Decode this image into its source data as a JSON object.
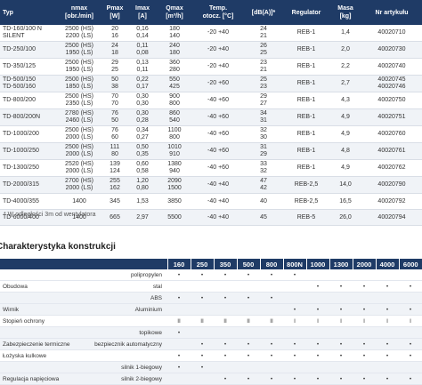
{
  "spec_table": {
    "headers": [
      {
        "top": "Typ",
        "bottom": ""
      },
      {
        "top": "nmax",
        "bottom": "[obr./min]"
      },
      {
        "top": "Pmax",
        "bottom": "[W]"
      },
      {
        "top": "Imax",
        "bottom": "[A]"
      },
      {
        "top": "Qmax",
        "bottom": "[m³/h]"
      },
      {
        "top": "Temp.",
        "bottom": "otocz. [°C]"
      },
      {
        "top": "[dB(A)]*",
        "bottom": ""
      },
      {
        "top": "Regulator",
        "bottom": ""
      },
      {
        "top": "Masa",
        "bottom": "[kg]"
      },
      {
        "top": "Nr artykułu",
        "bottom": ""
      }
    ],
    "rows": [
      {
        "typ": [
          "TD-160/100 N",
          "SILENT"
        ],
        "nmax": [
          "2500 (HS)",
          "2200 (LS)"
        ],
        "pmax": [
          "20",
          "16"
        ],
        "imax": [
          "0,16",
          "0,14"
        ],
        "qmax": [
          "180",
          "140"
        ],
        "temp": [
          "-20 +40"
        ],
        "db": [
          "24",
          "21"
        ],
        "reg": [
          "REB-1"
        ],
        "masa": [
          "1,4"
        ],
        "nr": [
          "40020710"
        ]
      },
      {
        "typ": [
          "TD-250/100"
        ],
        "nmax": [
          "2500 (HS)",
          "1950 (LS)"
        ],
        "pmax": [
          "24",
          "18"
        ],
        "imax": [
          "0,11",
          "0,08"
        ],
        "qmax": [
          "240",
          "180"
        ],
        "temp": [
          "-20 +40"
        ],
        "db": [
          "26",
          "25"
        ],
        "reg": [
          "REB-1"
        ],
        "masa": [
          "2,0"
        ],
        "nr": [
          "40020730"
        ]
      },
      {
        "typ": [
          "TD-350/125"
        ],
        "nmax": [
          "2500 (HS)",
          "1950 (LS)"
        ],
        "pmax": [
          "29",
          "25"
        ],
        "imax": [
          "0,13",
          "0,11"
        ],
        "qmax": [
          "360",
          "280"
        ],
        "temp": [
          "-20 +40"
        ],
        "db": [
          "23",
          "21"
        ],
        "reg": [
          "REB-1"
        ],
        "masa": [
          "2,2"
        ],
        "nr": [
          "40020740"
        ]
      },
      {
        "typ": [
          "TD-500/150",
          "TD-500/160"
        ],
        "nmax": [
          "2500 (HS)",
          "1850 (LS)"
        ],
        "pmax": [
          "50",
          "38"
        ],
        "imax": [
          "0,22",
          "0,17"
        ],
        "qmax": [
          "550",
          "425"
        ],
        "temp": [
          "-20 +60"
        ],
        "db": [
          "25",
          "23"
        ],
        "reg": [
          "REB-1"
        ],
        "masa": [
          "2,7"
        ],
        "nr": [
          "40020745",
          "40020746"
        ]
      },
      {
        "typ": [
          "TD-800/200"
        ],
        "nmax": [
          "2500 (HS)",
          "2350 (LS)"
        ],
        "pmax": [
          "70",
          "70"
        ],
        "imax": [
          "0,30",
          "0,30"
        ],
        "qmax": [
          "900",
          "800"
        ],
        "temp": [
          "-40 +60"
        ],
        "db": [
          "29",
          "27"
        ],
        "reg": [
          "REB-1"
        ],
        "masa": [
          "4,3"
        ],
        "nr": [
          "40020750"
        ]
      },
      {
        "typ": [
          "TD-800/200N"
        ],
        "nmax": [
          "2780 (HS)",
          "2460 (LS)"
        ],
        "pmax": [
          "76",
          "50"
        ],
        "imax": [
          "0,30",
          "0,28"
        ],
        "qmax": [
          "860",
          "540"
        ],
        "temp": [
          "-40 +60"
        ],
        "db": [
          "34",
          "31"
        ],
        "reg": [
          "REB-1"
        ],
        "masa": [
          "4,9"
        ],
        "nr": [
          "40020751"
        ]
      },
      {
        "typ": [
          "TD-1000/200"
        ],
        "nmax": [
          "2500 (HS)",
          "2000 (LS)"
        ],
        "pmax": [
          "76",
          "60"
        ],
        "imax": [
          "0,34",
          "0,27"
        ],
        "qmax": [
          "1100",
          "800"
        ],
        "temp": [
          "-40 +60"
        ],
        "db": [
          "32",
          "30"
        ],
        "reg": [
          "REB-1"
        ],
        "masa": [
          "4,9"
        ],
        "nr": [
          "40020760"
        ]
      },
      {
        "typ": [
          "TD-1000/250"
        ],
        "nmax": [
          "2500 (HS)",
          "2000 (LS)"
        ],
        "pmax": [
          "111",
          "80"
        ],
        "imax": [
          "0,50",
          "0,35"
        ],
        "qmax": [
          "1010",
          "910"
        ],
        "temp": [
          "-40 +60"
        ],
        "db": [
          "31",
          "29"
        ],
        "reg": [
          "REB-1"
        ],
        "masa": [
          "4,8"
        ],
        "nr": [
          "40020761"
        ]
      },
      {
        "typ": [
          "TD-1300/250"
        ],
        "nmax": [
          "2520 (HS)",
          "2000 (LS)"
        ],
        "pmax": [
          "139",
          "124"
        ],
        "imax": [
          "0,60",
          "0,58"
        ],
        "qmax": [
          "1380",
          "940"
        ],
        "temp": [
          "-40 +60"
        ],
        "db": [
          "33",
          "32"
        ],
        "reg": [
          "REB-1"
        ],
        "masa": [
          "4,9"
        ],
        "nr": [
          "40020762"
        ]
      },
      {
        "typ": [
          "TD-2000/315"
        ],
        "nmax": [
          "2700 (HS)",
          "2000 (LS)"
        ],
        "pmax": [
          "255",
          "162"
        ],
        "imax": [
          "1,20",
          "0,80"
        ],
        "qmax": [
          "2090",
          "1500"
        ],
        "temp": [
          "-40 +40"
        ],
        "db": [
          "47",
          "42"
        ],
        "reg": [
          "REB-2,5"
        ],
        "masa": [
          "14,0"
        ],
        "nr": [
          "40020790"
        ]
      },
      {
        "typ": [
          "TD-4000/355"
        ],
        "nmax": [
          "1400"
        ],
        "pmax": [
          "345"
        ],
        "imax": [
          "1,53"
        ],
        "qmax": [
          "3850"
        ],
        "temp": [
          "-40 +40"
        ],
        "db": [
          "40"
        ],
        "reg": [
          "REB-2,5"
        ],
        "masa": [
          "16,5"
        ],
        "nr": [
          "40020792"
        ]
      },
      {
        "typ": [
          "TD-6000/400"
        ],
        "nmax": [
          "1400"
        ],
        "pmax": [
          "665"
        ],
        "imax": [
          "2,97"
        ],
        "qmax": [
          "5500"
        ],
        "temp": [
          "-40 +40"
        ],
        "db": [
          "45"
        ],
        "reg": [
          "REB-5"
        ],
        "masa": [
          "26,0"
        ],
        "nr": [
          "40020794"
        ]
      }
    ]
  },
  "footnote": "* W odległości 3m od wentylatora",
  "section_title": "Charakterystyka konstrukcji",
  "construction_table": {
    "sizes": [
      "160",
      "250",
      "350",
      "500",
      "800",
      "800N",
      "1000",
      "1300",
      "2000",
      "4000",
      "6000"
    ],
    "rows": [
      {
        "group": 1,
        "label": "",
        "sub": "polipropylen",
        "marks": [
          "•",
          "•",
          "•",
          "•",
          "•",
          "•",
          "",
          "",
          "",
          "",
          ""
        ]
      },
      {
        "group": 1,
        "label": "Obudowa",
        "sub": "stal",
        "marks": [
          "",
          "",
          "",
          "",
          "",
          "",
          "•",
          "•",
          "•",
          "•",
          "•"
        ]
      },
      {
        "group": 2,
        "label": "",
        "sub": "ABS",
        "marks": [
          "•",
          "•",
          "•",
          "•",
          "•",
          "",
          "",
          "",
          "",
          "",
          ""
        ]
      },
      {
        "group": 2,
        "label": "Wirnik",
        "sub": "Aluminium",
        "marks": [
          "",
          "",
          "",
          "",
          "",
          "•",
          "•",
          "•",
          "•",
          "•",
          "•"
        ]
      },
      {
        "group": 3,
        "label": "Stopień ochrony",
        "sub": "",
        "marks": [
          "II",
          "II",
          "II",
          "II",
          "II",
          "I",
          "I",
          "I",
          "I",
          "I",
          "I"
        ]
      },
      {
        "group": 4,
        "label": "",
        "sub": "topikowe",
        "marks": [
          "•",
          "",
          "",
          "",
          "",
          "",
          "",
          "",
          "",
          "",
          ""
        ]
      },
      {
        "group": 4,
        "label": "Zabezpieczenie termiczne",
        "sub": "bezpiecznik automatyczny",
        "marks": [
          "",
          "•",
          "•",
          "•",
          "•",
          "•",
          "•",
          "•",
          "•",
          "•",
          "•"
        ]
      },
      {
        "group": 5,
        "label": "Łożyska kulkowe",
        "sub": "",
        "marks": [
          "•",
          "•",
          "•",
          "•",
          "•",
          "•",
          "•",
          "•",
          "•",
          "•",
          "•"
        ]
      },
      {
        "group": 6,
        "label": "",
        "sub": "silnik 1-biegowy",
        "marks": [
          "•",
          "•",
          "",
          "",
          "",
          "",
          "",
          "",
          "",
          "",
          ""
        ]
      },
      {
        "group": 6,
        "label": "Regulacja napięciowa",
        "sub": "silnik 2-biegowy",
        "marks": [
          "",
          "",
          "•",
          "•",
          "•",
          "•",
          "•",
          "•",
          "•",
          "•",
          "•"
        ]
      }
    ]
  }
}
